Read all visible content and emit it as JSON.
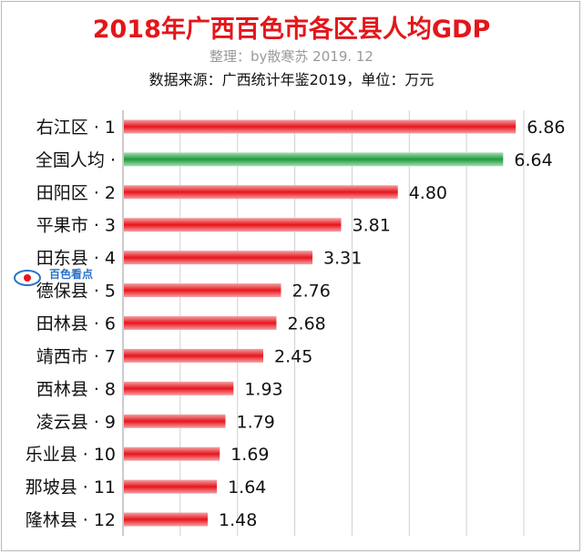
{
  "header": {
    "title": "2018年广西百色市各区县人均GDP",
    "credit": "整理：by散寒苏  2019. 12",
    "source": "数据来源：广西统计年鉴2019，单位：万元"
  },
  "watermark": {
    "text": "百色看点"
  },
  "colors": {
    "bar_red": "#e8141c",
    "bar_green": "#1f9a3c",
    "title": "#e3161b",
    "grid": "#d0d0d0"
  },
  "chart_data": {
    "type": "bar",
    "orientation": "horizontal",
    "title": "2018年广西百色市各区县人均GDP",
    "unit": "万元",
    "grid": true,
    "categories": [
      "右江区 · 1",
      "全国人均 ·",
      "田阳区 · 2",
      "平果市 · 3",
      "田东县 · 4",
      "德保县 · 5",
      "田林县 · 6",
      "靖西市 · 7",
      "西林县 · 8",
      "凌云县 · 9",
      "乐业县 · 10",
      "那坡县 · 11",
      "隆林县 · 12"
    ],
    "values": [
      6.86,
      6.64,
      4.8,
      3.81,
      3.31,
      2.76,
      2.68,
      2.45,
      1.93,
      1.79,
      1.69,
      1.64,
      1.48
    ],
    "value_labels": [
      "6.86",
      "6.64",
      "4.80",
      "3.81",
      "3.31",
      "2.76",
      "2.68",
      "2.45",
      "1.93",
      "1.79",
      "1.69",
      "1.64",
      "1.48"
    ],
    "highlight": [
      false,
      true,
      false,
      false,
      false,
      false,
      false,
      false,
      false,
      false,
      false,
      false,
      false
    ],
    "xlim": [
      0,
      7
    ]
  }
}
